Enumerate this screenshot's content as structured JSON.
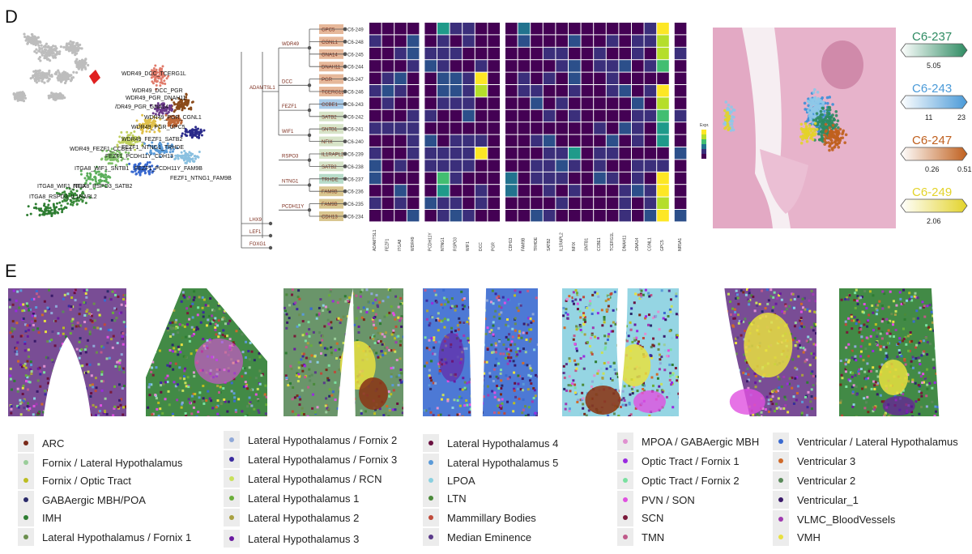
{
  "panels": {
    "d": "D",
    "e": "E"
  },
  "umap_labels": [
    "WDR49_DCC_TCERG1L",
    "WDR49_DCC_PGR",
    "WDR49_PGR_DNAH11",
    "/DR49_PGR_GNA14",
    "WDR49_PGR_CGNL1",
    "WDR49_PGR_GPC5",
    "WDR49_FEZF1_SATB2",
    "WDR49_FEZF1_CCBE1",
    "FEZF1_NTNG1_TRHDE",
    "FEZF1_PCDH11Y_CDH13",
    "ITGA8_WIF1_SNTB1",
    "FEZF1_PCDH11Y_FAM9B",
    "FEZF1_NTNG1_FAM9B",
    "ITGA8_WIF1_NFIX",
    "ITGA8_RSPO3_SATB2",
    "ITGA8_RSPO3_IL1RAPL2"
  ],
  "tree": {
    "nodes": [
      "WDR49",
      "PGR",
      "DCC",
      "FEZF1",
      "ITGA8",
      "WIF1",
      "RSPO3",
      "ADAMTSL1",
      "FEZF1",
      "NTNG1",
      "PCDH11Y",
      "LHX9",
      "LEF1",
      "FOXG1"
    ],
    "leaf_genes": [
      "GPC5",
      "CGNL1",
      "GNA14",
      "DNAH11",
      "PGR",
      "TCERG1L",
      "CCBE1",
      "SATB2",
      "SNTB1",
      "NFIX",
      "IL1RAPL2",
      "SATB2",
      "TRHDE",
      "FAM9B",
      "FAM9B",
      "CDH13"
    ],
    "clusters": [
      "C6-249",
      "C6-248",
      "C6-245",
      "C6-244",
      "C6-247",
      "C6-246",
      "C6-243",
      "C6-242",
      "C6-241",
      "C6-240",
      "C6-239",
      "C6-238",
      "C6-237",
      "C6-236",
      "C6-235",
      "C6-234"
    ]
  },
  "heatmap_columns": [
    "ADAMTSL1",
    "FEZF1",
    "ITGA8",
    "WDR49",
    "PCDH11Y",
    "NTNG1",
    "RSPO3",
    "WIF1",
    "DCC",
    "PGR",
    "CDH13",
    "FAM9B",
    "TRHDE",
    "SATB2",
    "IL1RAPL2",
    "NFIX",
    "SNTB1",
    "CCBE1",
    "TCERG1L",
    "DNAH11",
    "GNA14",
    "CGNL1",
    "GPC5",
    "NR5A1"
  ],
  "heatmap_legend_title": "Expr.",
  "spatial_scales": [
    {
      "cluster": "C6-237",
      "ticks": [
        "5.05"
      ],
      "color": "#2e8b62"
    },
    {
      "cluster": "C6-243",
      "ticks": [
        "11",
        "23"
      ],
      "color": "#4a9ad8"
    },
    {
      "cluster": "C6-247",
      "ticks": [
        "0.26",
        "0.51"
      ],
      "color": "#c0601e"
    },
    {
      "cluster": "C6-249",
      "ticks": [
        "2.06"
      ],
      "color": "#e3d32a"
    }
  ],
  "legend": [
    {
      "label": "ARC",
      "color": "#7a2a1a"
    },
    {
      "label": "Fornix / Lateral Hypothalamus",
      "color": "#9acd9a"
    },
    {
      "label": "Fornix / Optic Tract",
      "color": "#bcbd22"
    },
    {
      "label": "GABAergic MBH/POA",
      "color": "#2a2a6a"
    },
    {
      "label": "IMH",
      "color": "#2e7d32"
    },
    {
      "label": "Lateral Hypothalamus / Fornix 1",
      "color": "#6b8e4e"
    },
    {
      "label": "Lateral Hypothalamus / Fornix 2",
      "color": "#8fa8d8"
    },
    {
      "label": "Lateral Hypothalamus / Fornix 3",
      "color": "#3a2aa0"
    },
    {
      "label": "Lateral Hypothalamus / RCN",
      "color": "#c8e05a"
    },
    {
      "label": "Lateral Hypothalamus 1",
      "color": "#6aae3a"
    },
    {
      "label": "Lateral Hypothalamus 2",
      "color": "#a8a040"
    },
    {
      "label": "Lateral Hypothalamus 3",
      "color": "#6a1aa0"
    },
    {
      "label": "Lateral Hypothalamus 4",
      "color": "#6a1040"
    },
    {
      "label": "Lateral Hypothalamus 5",
      "color": "#5a9ad8"
    },
    {
      "label": "LPOA",
      "color": "#8ad0e0"
    },
    {
      "label": "LTN",
      "color": "#4a8a3a"
    },
    {
      "label": "Mammillary Bodies",
      "color": "#c04a3a"
    },
    {
      "label": "Median Eminence",
      "color": "#5a3a8a"
    },
    {
      "label": "MPOA / GABAergic MBH",
      "color": "#e090d0"
    },
    {
      "label": "Optic Tract / Fornix 1",
      "color": "#9a2ae0"
    },
    {
      "label": "Optic Tract / Fornix 2",
      "color": "#7ae0a0"
    },
    {
      "label": "PVN / SON",
      "color": "#e050e0"
    },
    {
      "label": "SCN",
      "color": "#7a1a3a"
    },
    {
      "label": "TMN",
      "color": "#c05a8a"
    },
    {
      "label": "Ventricular / Lateral Hypothalamus",
      "color": "#3a6ad0"
    },
    {
      "label": "Ventricular 3",
      "color": "#d06a2a"
    },
    {
      "label": "Ventricular 2",
      "color": "#5a8a5a"
    },
    {
      "label": "Ventricular_1",
      "color": "#3a1a6a"
    },
    {
      "label": "VLMC_BloodVessels",
      "color": "#a03ab0"
    },
    {
      "label": "VMH",
      "color": "#e8e040"
    }
  ]
}
